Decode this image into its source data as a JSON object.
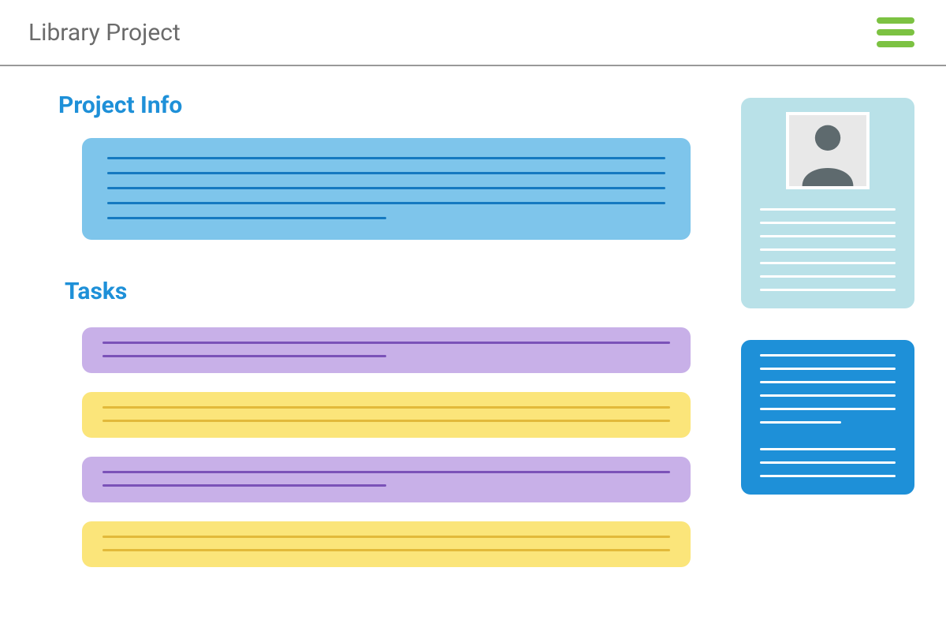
{
  "header": {
    "title": "Library Project",
    "hamburger_color": "#7cc242"
  },
  "headings": {
    "project_info": "Project Info",
    "tasks": "Tasks",
    "heading_color": "#1e90d8"
  },
  "info_card": {
    "background": "#7ec5eb",
    "line_color": "#1579c0",
    "line_count": 5,
    "last_line_width_pct": 50
  },
  "tasks": [
    {
      "background": "#c8b0e8",
      "line_color": "#7b52b8",
      "line_count": 2,
      "last_line_width_pct": 50
    },
    {
      "background": "#fbe57a",
      "line_color": "#e2b93a",
      "line_count": 2,
      "last_line_width_pct": 100
    },
    {
      "background": "#c8b0e8",
      "line_color": "#7b52b8",
      "line_count": 2,
      "last_line_width_pct": 50
    },
    {
      "background": "#fbe57a",
      "line_color": "#e2b93a",
      "line_count": 2,
      "last_line_width_pct": 100
    }
  ],
  "side_cards": [
    {
      "background": "#b9e1e8",
      "line_color": "#ffffff",
      "has_avatar": true,
      "avatar_fill": "#5e6a6e",
      "lines": [
        100,
        100,
        100,
        100,
        100,
        100,
        100
      ]
    },
    {
      "background": "#1e90d8",
      "line_color": "#ffffff",
      "has_avatar": false,
      "lines": [
        100,
        100,
        100,
        100,
        100,
        60,
        0,
        100,
        100,
        100
      ]
    }
  ]
}
